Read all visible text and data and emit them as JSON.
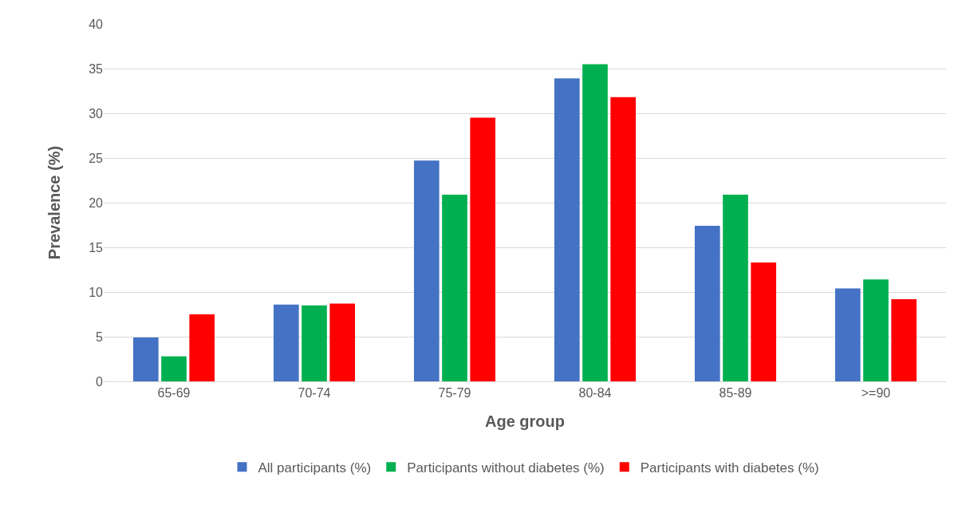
{
  "chart_data": {
    "type": "bar",
    "xlabel": "Age group",
    "ylabel": "Prevalence (%)",
    "categories": [
      "65-69",
      "70-74",
      "75-79",
      "80-84",
      "85-89",
      ">=90"
    ],
    "series": [
      {
        "name": "All participants (%)",
        "color": "#4472c4",
        "values": [
          4.9,
          8.6,
          24.7,
          33.9,
          17.4,
          10.4
        ]
      },
      {
        "name": "Participants without diabetes (%)",
        "color": "#00b050",
        "values": [
          2.8,
          8.5,
          20.9,
          35.5,
          20.9,
          11.4
        ]
      },
      {
        "name": "Participants with diabetes (%)",
        "color": "#ff0000",
        "values": [
          7.5,
          8.7,
          29.5,
          31.8,
          13.3,
          9.2
        ]
      }
    ],
    "ylim": [
      0,
      40
    ],
    "yticks": [
      0,
      5,
      10,
      15,
      20,
      25,
      30,
      35,
      40
    ],
    "grid": "y",
    "legend": "bottom"
  }
}
